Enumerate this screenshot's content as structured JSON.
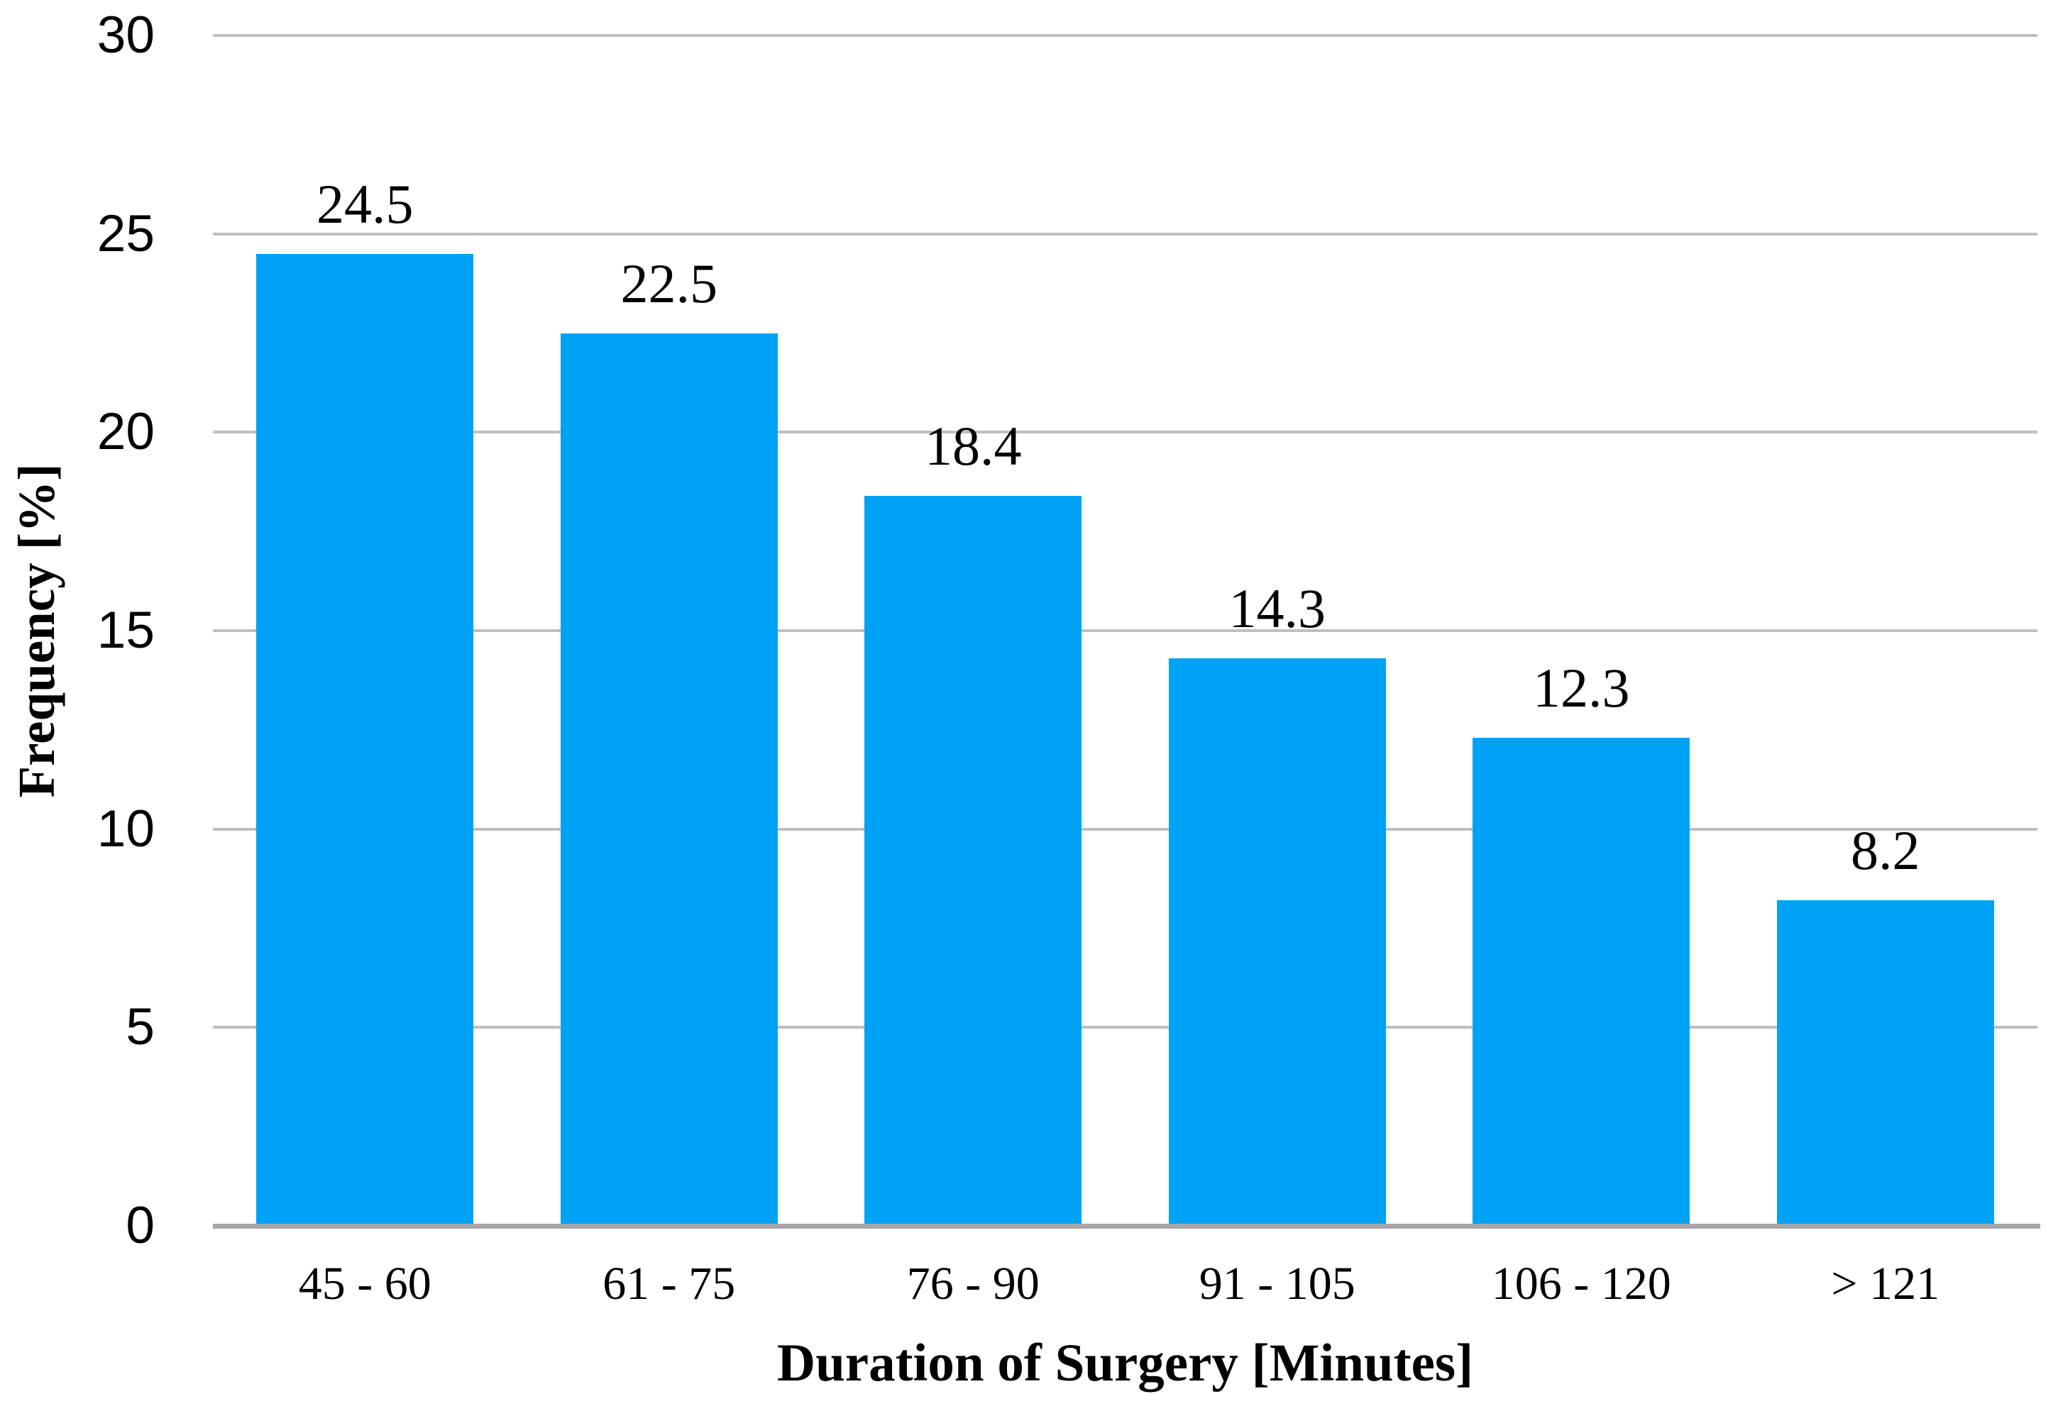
{
  "chart_data": {
    "type": "bar",
    "title": "",
    "categories": [
      "45 - 60",
      "61 - 75",
      "76 - 90",
      "91 - 105",
      "106 - 120",
      "> 121"
    ],
    "values": [
      24.5,
      22.5,
      18.4,
      14.3,
      12.3,
      8.2
    ],
    "value_labels": [
      "24.5",
      "22.5",
      "18.4",
      "14.3",
      "12.3",
      "8.2"
    ],
    "xlabel": "Duration of Surgery [Minutes]",
    "ylabel": "Frequency [%]",
    "ylim": [
      0,
      30
    ],
    "yticks": [
      0,
      5,
      10,
      15,
      20,
      25,
      30
    ],
    "grid": "horizontal",
    "legend": "none",
    "colors": {
      "bar": "#00A2F5",
      "gridline": "#BFBFBF",
      "axis_line": "#A6A6A6",
      "text": "#000000",
      "background": "#FFFFFF"
    }
  }
}
